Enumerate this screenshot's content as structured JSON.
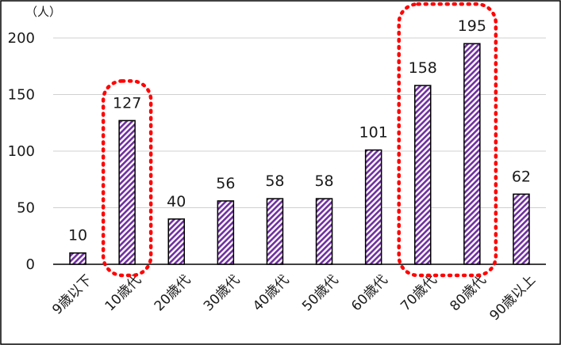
{
  "colors": {
    "bar_stripe_a": "#7030a0",
    "bar_stripe_b": "#ffffff",
    "bar_outline": "#000000",
    "highlight": "#ff0000",
    "grid": "#d0d0d0"
  },
  "chart_data": {
    "type": "bar",
    "unit_label": "（人）",
    "categories": [
      "9歳以下",
      "10歳代",
      "20歳代",
      "30歳代",
      "40歳代",
      "50歳代",
      "60歳代",
      "70歳代",
      "80歳代",
      "90歳以上"
    ],
    "values": [
      10,
      127,
      40,
      56,
      58,
      58,
      101,
      158,
      195,
      62
    ],
    "ylim": [
      0,
      200
    ],
    "yticks": [
      0,
      50,
      100,
      150,
      200
    ],
    "grid": true,
    "legend": "none",
    "highlight_groups": [
      [
        "10歳代"
      ],
      [
        "70歳代",
        "80歳代"
      ]
    ]
  }
}
